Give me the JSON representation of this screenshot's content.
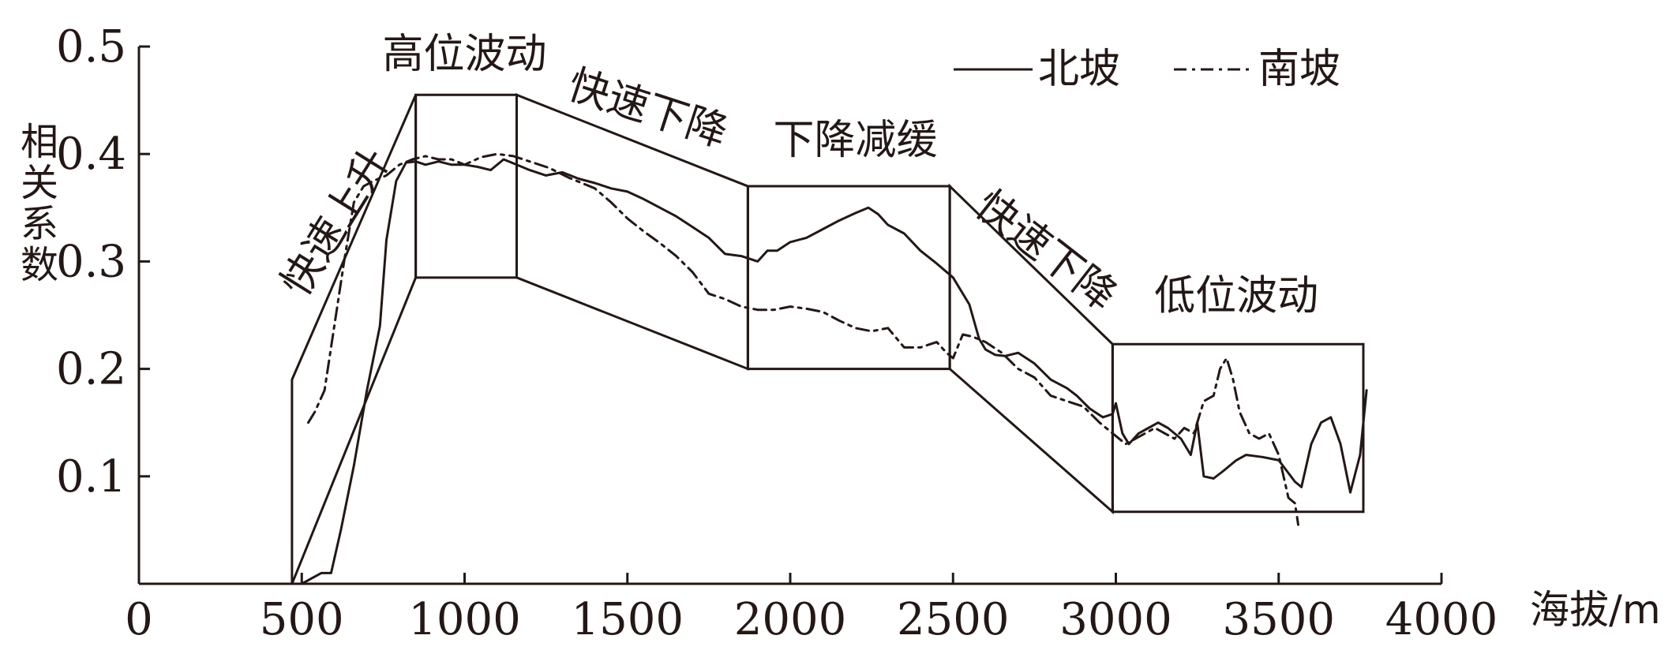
{
  "chart_data": {
    "type": "line",
    "xlabel": "海拔/m",
    "ylabel": "相关系数",
    "xlim": [
      0,
      4000
    ],
    "ylim": [
      0,
      0.5
    ],
    "x_ticks": [
      0,
      500,
      1000,
      1500,
      2000,
      2500,
      3000,
      3500,
      4000
    ],
    "x_tick_labels": [
      "0",
      "500",
      "1000",
      "1500",
      "2000",
      "2500",
      "3000",
      "3500",
      "4000"
    ],
    "y_ticks": [
      0.1,
      0.2,
      0.3,
      0.4,
      0.5
    ],
    "y_tick_labels": [
      "0.1",
      "0.2",
      "0.3",
      "0.4",
      "0.5"
    ],
    "legend_position": "top-right",
    "series": [
      {
        "name": "北坡",
        "style": "solid",
        "x": [
          500,
          530,
          560,
          590,
          620,
          660,
          700,
          740,
          760,
          790,
          820,
          850,
          880,
          920,
          960,
          1000,
          1040,
          1080,
          1120,
          1160,
          1200,
          1250,
          1300,
          1350,
          1400,
          1450,
          1500,
          1550,
          1600,
          1650,
          1700,
          1750,
          1800,
          1850,
          1900,
          1930,
          1960,
          2000,
          2050,
          2100,
          2150,
          2200,
          2240,
          2270,
          2300,
          2350,
          2400,
          2450,
          2500,
          2550,
          2580,
          2600,
          2630,
          2660,
          2700,
          2750,
          2800,
          2850,
          2880,
          2920,
          2960,
          2990,
          3000,
          3020,
          3040,
          3070,
          3100,
          3130,
          3160,
          3200,
          3230,
          3250,
          3270,
          3300,
          3330,
          3370,
          3400,
          3450,
          3500,
          3550,
          3570,
          3600,
          3630,
          3660,
          3690,
          3720,
          3750,
          3770
        ],
        "values": [
          0.0,
          0.005,
          0.01,
          0.01,
          0.05,
          0.11,
          0.18,
          0.24,
          0.32,
          0.375,
          0.392,
          0.393,
          0.39,
          0.393,
          0.39,
          0.39,
          0.388,
          0.385,
          0.395,
          0.39,
          0.385,
          0.38,
          0.383,
          0.377,
          0.373,
          0.368,
          0.365,
          0.358,
          0.35,
          0.342,
          0.332,
          0.322,
          0.307,
          0.305,
          0.3,
          0.31,
          0.31,
          0.318,
          0.322,
          0.33,
          0.338,
          0.345,
          0.35,
          0.344,
          0.334,
          0.326,
          0.31,
          0.298,
          0.285,
          0.26,
          0.228,
          0.218,
          0.213,
          0.212,
          0.215,
          0.205,
          0.19,
          0.182,
          0.175,
          0.163,
          0.155,
          0.158,
          0.168,
          0.14,
          0.13,
          0.14,
          0.145,
          0.15,
          0.145,
          0.135,
          0.12,
          0.15,
          0.1,
          0.098,
          0.105,
          0.115,
          0.12,
          0.118,
          0.115,
          0.095,
          0.09,
          0.13,
          0.15,
          0.155,
          0.13,
          0.085,
          0.12,
          0.18
        ]
      },
      {
        "name": "南坡",
        "style": "dash-dot",
        "x": [
          520,
          540,
          570,
          600,
          630,
          660,
          690,
          720,
          760,
          800,
          840,
          880,
          920,
          960,
          1000,
          1050,
          1100,
          1150,
          1200,
          1260,
          1320,
          1400,
          1450,
          1500,
          1550,
          1600,
          1650,
          1700,
          1750,
          1800,
          1850,
          1900,
          1950,
          2000,
          2050,
          2100,
          2150,
          2200,
          2250,
          2300,
          2350,
          2400,
          2450,
          2480,
          2500,
          2530,
          2560,
          2600,
          2650,
          2700,
          2750,
          2800,
          2850,
          2900,
          2950,
          2990,
          3030,
          3060,
          3090,
          3120,
          3150,
          3180,
          3210,
          3240,
          3270,
          3300,
          3320,
          3340,
          3360,
          3380,
          3410,
          3440,
          3470,
          3500,
          3530,
          3550,
          3560
        ],
        "values": [
          0.15,
          0.16,
          0.18,
          0.24,
          0.3,
          0.355,
          0.37,
          0.375,
          0.38,
          0.39,
          0.395,
          0.398,
          0.395,
          0.395,
          0.39,
          0.397,
          0.4,
          0.398,
          0.393,
          0.387,
          0.378,
          0.368,
          0.355,
          0.34,
          0.328,
          0.317,
          0.305,
          0.29,
          0.27,
          0.265,
          0.258,
          0.255,
          0.255,
          0.258,
          0.256,
          0.253,
          0.245,
          0.238,
          0.235,
          0.238,
          0.22,
          0.22,
          0.225,
          0.215,
          0.21,
          0.232,
          0.23,
          0.225,
          0.215,
          0.2,
          0.192,
          0.175,
          0.17,
          0.165,
          0.15,
          0.14,
          0.13,
          0.135,
          0.14,
          0.145,
          0.14,
          0.135,
          0.145,
          0.14,
          0.17,
          0.175,
          0.2,
          0.21,
          0.19,
          0.16,
          0.14,
          0.135,
          0.14,
          0.12,
          0.08,
          0.075,
          0.055
        ]
      }
    ],
    "annotations": [
      {
        "text": "快速上升",
        "x": 640,
        "y": 0.33
      },
      {
        "text": "高位波动",
        "x": 1000,
        "y": 0.48
      },
      {
        "text": "快速下降",
        "x": 1550,
        "y": 0.43
      },
      {
        "text": "下降减缓",
        "x": 2200,
        "y": 0.4
      },
      {
        "text": "快速下降",
        "x": 2760,
        "y": 0.3
      },
      {
        "text": "低位波动",
        "x": 3370,
        "y": 0.255
      }
    ],
    "stage_boxes": [
      {
        "name": "快速上升",
        "x_range": [
          470,
          850
        ],
        "top": [
          0.19,
          0.455
        ],
        "bottom": [
          0.0,
          0.285
        ]
      },
      {
        "name": "高位波动",
        "x_range": [
          850,
          1160
        ],
        "y_range": [
          0.285,
          0.455
        ]
      },
      {
        "name": "快速下降",
        "x_range": [
          1160,
          1870
        ],
        "top": [
          0.455,
          0.37
        ],
        "bottom": [
          0.285,
          0.2
        ]
      },
      {
        "name": "下降减缓",
        "x_range": [
          1870,
          2490
        ],
        "y_range": [
          0.2,
          0.37
        ]
      },
      {
        "name": "快速下降",
        "x_range": [
          2490,
          2990
        ],
        "top": [
          0.37,
          0.223
        ],
        "bottom": [
          0.2,
          0.067
        ]
      },
      {
        "name": "低位波动",
        "x_range": [
          2990,
          3760
        ],
        "y_range": [
          0.067,
          0.223
        ]
      }
    ],
    "colors": {
      "ink": "#231815",
      "background": "#ffffff"
    }
  }
}
